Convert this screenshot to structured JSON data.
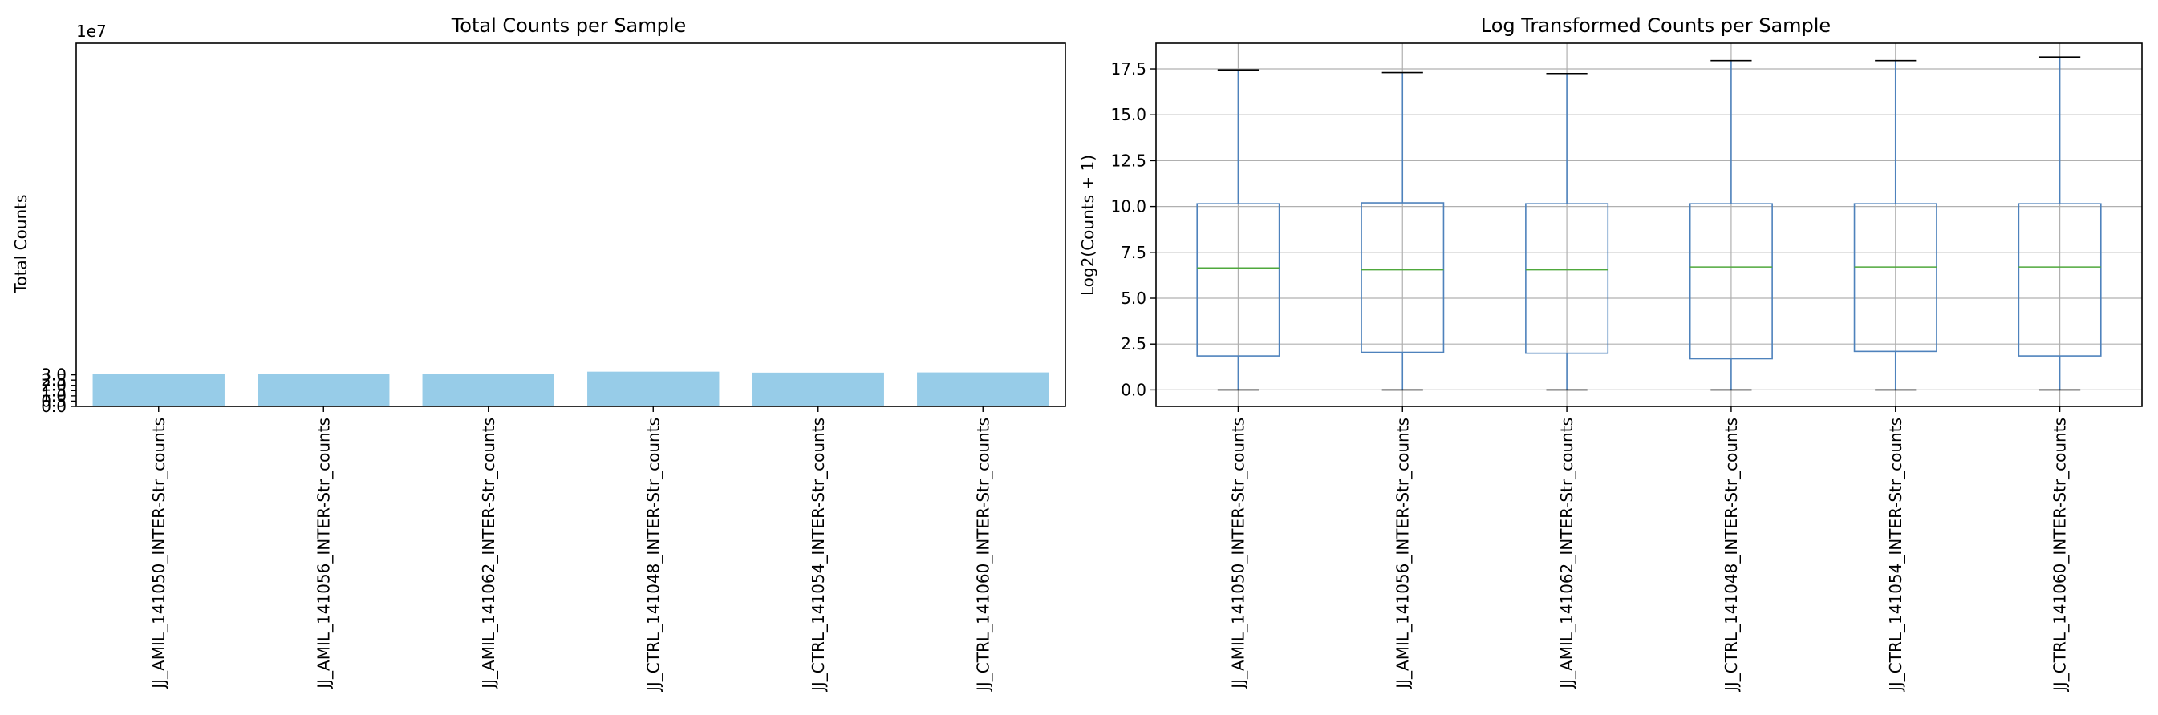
{
  "chart_data": [
    {
      "type": "bar",
      "title": "Total Counts per Sample",
      "xlabel": "",
      "ylabel": "Total Counts",
      "offset_label": "1e7",
      "scale": 10000000,
      "ylim": [
        0,
        34.5
      ],
      "yticks": [
        0.0,
        0.5,
        1.0,
        1.5,
        2.0,
        2.5,
        3.0
      ],
      "ytick_labels": [
        "0.0",
        "0.5",
        "1.0",
        "1.5",
        "2.0",
        "2.5",
        "3.0"
      ],
      "grid": false,
      "bar_color": "#97cce8",
      "categories": [
        "JJ_AMIL_141050_INTER-Str_counts",
        "JJ_AMIL_141056_INTER-Str_counts",
        "JJ_AMIL_141062_INTER-Str_counts",
        "JJ_CTRL_141048_INTER-Str_counts",
        "JJ_CTRL_141054_INTER-Str_counts",
        "JJ_CTRL_141060_INTER-Str_counts"
      ],
      "values": [
        31200000,
        31200000,
        30700000,
        33000000,
        32100000,
        32300000
      ]
    },
    {
      "type": "box",
      "title": "Log Transformed Counts per Sample",
      "xlabel": "",
      "ylabel": "Log2(Counts + 1)",
      "ylim": [
        -0.9,
        18.9
      ],
      "yticks": [
        0.0,
        2.5,
        5.0,
        7.5,
        10.0,
        12.5,
        15.0,
        17.5
      ],
      "ytick_labels": [
        "0.0",
        "2.5",
        "5.0",
        "7.5",
        "10.0",
        "12.5",
        "15.0",
        "17.5"
      ],
      "grid": true,
      "box_color": "#4e82bc",
      "median_color": "#4fa83c",
      "categories": [
        "JJ_AMIL_141050_INTER-Str_counts",
        "JJ_AMIL_141056_INTER-Str_counts",
        "JJ_AMIL_141062_INTER-Str_counts",
        "JJ_CTRL_141048_INTER-Str_counts",
        "JJ_CTRL_141054_INTER-Str_counts",
        "JJ_CTRL_141060_INTER-Str_counts"
      ],
      "series": [
        {
          "whisker_low": 0.0,
          "q1": 1.85,
          "median": 6.65,
          "q3": 10.15,
          "whisker_high": 17.45
        },
        {
          "whisker_low": 0.0,
          "q1": 2.05,
          "median": 6.55,
          "q3": 10.2,
          "whisker_high": 17.3
        },
        {
          "whisker_low": 0.0,
          "q1": 2.0,
          "median": 6.55,
          "q3": 10.15,
          "whisker_high": 17.25
        },
        {
          "whisker_low": 0.0,
          "q1": 1.7,
          "median": 6.7,
          "q3": 10.15,
          "whisker_high": 17.95
        },
        {
          "whisker_low": 0.0,
          "q1": 2.1,
          "median": 6.7,
          "q3": 10.15,
          "whisker_high": 17.95
        },
        {
          "whisker_low": 0.0,
          "q1": 1.85,
          "median": 6.7,
          "q3": 10.15,
          "whisker_high": 18.15
        }
      ]
    }
  ]
}
